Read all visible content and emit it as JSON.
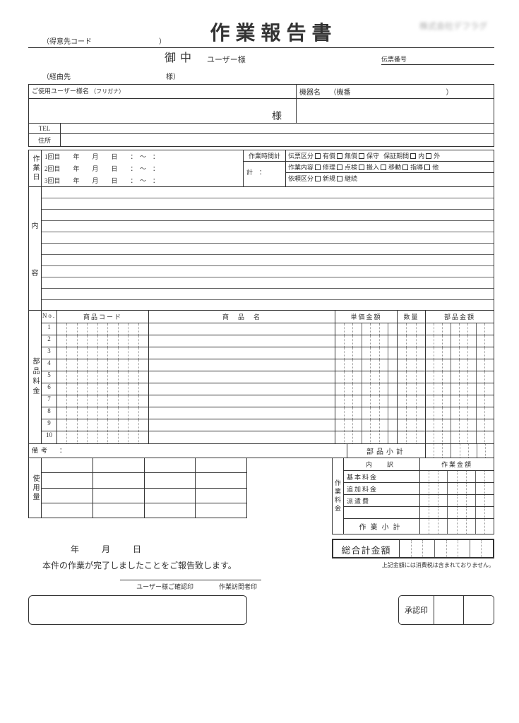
{
  "header": {
    "tokui_code_label": "（得意先コード",
    "tokui_close": "）",
    "title": "作業報告書",
    "company_blur": "株式会社デフラグ",
    "onchu": "御中",
    "user_sama_label": "ユーザー様",
    "denpyo_label": "伝票番号",
    "keiyu_label": "（経由先",
    "keiyu_sama": "様）"
  },
  "user": {
    "name_label": "ご使用ユーザー様名",
    "furigana": "（フリガナ）",
    "kiki_label": "機器名",
    "kiban_open": "（機番",
    "kiban_close": "）",
    "sama": "様",
    "tel_label": "TEL",
    "addr_label": "住所"
  },
  "workdate": {
    "side": "作業日",
    "line1": "1回目　　年　　月　　日　　：　～　：",
    "line2": "2回目　　年　　月　　日　　：　～　：",
    "line3": "3回目　　年　　月　　日　　：　～　：",
    "time_header": "作業時間計",
    "time_body": "計　："
  },
  "classification": {
    "l1_label": "伝票区分",
    "l1_opts": [
      "有償",
      "無償",
      "保守"
    ],
    "l1b_label": "保証期間",
    "l1b_opts": [
      "内",
      "外"
    ],
    "l2_label": "作業内容",
    "l2_opts": [
      "修理",
      "点検",
      "搬入",
      "移動",
      "指導",
      "他"
    ],
    "l3_label": "依頼区分",
    "l3_opts": [
      "新規",
      "継続"
    ]
  },
  "content": {
    "side1": "内",
    "side2": "容"
  },
  "parts": {
    "side": "部品料金",
    "headers": {
      "no": "No.",
      "code": "商品コード",
      "name": "商　品　名",
      "unit": "単価金額",
      "qty": "数量",
      "amt": "部品金額"
    },
    "rows": [
      1,
      2,
      3,
      4,
      5,
      6,
      7,
      8,
      9,
      10
    ]
  },
  "biko": {
    "label": "備考　：",
    "subtotal": "部品小計"
  },
  "usage": {
    "side": "使用量"
  },
  "fee": {
    "side": "作業料金",
    "hdr1": "内　訳",
    "hdr2": "作業金額",
    "r1": "基本料金",
    "r2": "追加料金",
    "r3": "派遣費",
    "sub": "作業小計"
  },
  "footer": {
    "date_line": "年　月　日",
    "complete": "本件の作業が完了しましたことをご報告致します。",
    "total_label": "総合計金額",
    "tax_note": "上記金額には消費税は含まれておりません。",
    "stamp_user": "ユーザー様ご確認印",
    "stamp_visitor": "作業訪問者印",
    "approve": "承認印"
  },
  "colors": {
    "line": "#333333",
    "dot": "#999999",
    "bg": "#ffffff"
  }
}
